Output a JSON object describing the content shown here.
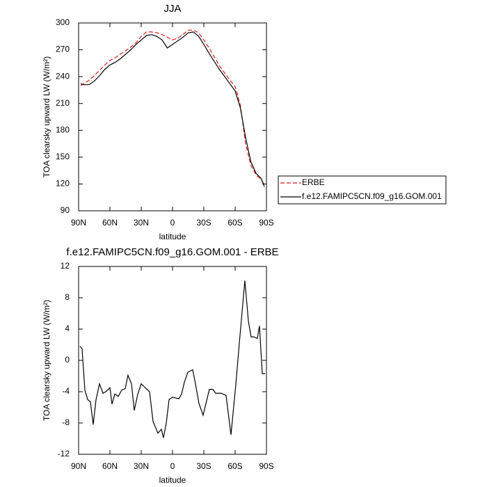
{
  "chart_data": [
    {
      "type": "line",
      "title": "JJA",
      "x_label": "latitude",
      "y_label": "TOA clearsky upward LW (W/m²)",
      "x": [
        88,
        85,
        80,
        75,
        70,
        65,
        60,
        55,
        50,
        45,
        40,
        35,
        30,
        25,
        20,
        15,
        10,
        5,
        0,
        -5,
        -10,
        -15,
        -20,
        -25,
        -30,
        -35,
        -40,
        -45,
        -50,
        -55,
        -60,
        -65,
        -70,
        -75,
        -80,
        -85,
        -88
      ],
      "series": [
        {
          "name": "ERBE",
          "color": "#e41a1c",
          "dash": true,
          "values": [
            230,
            232,
            236,
            241,
            247,
            253,
            258,
            261,
            265,
            269,
            273,
            278,
            285,
            290,
            290,
            289,
            287,
            284,
            281,
            283,
            287,
            292,
            292,
            289,
            281,
            272,
            262,
            252,
            244,
            236,
            229,
            208,
            165,
            141,
            130,
            125,
            119
          ]
        },
        {
          "name": "f.e12.FAMIPC5CN.f09_g16.GOM.001",
          "color": "#000000",
          "dash": false,
          "values": [
            232,
            231,
            231,
            235,
            241,
            248,
            253,
            256,
            260,
            265,
            270,
            276,
            281,
            286,
            287,
            285,
            281,
            272,
            276,
            280,
            284,
            289,
            290,
            285,
            276,
            266,
            257,
            248,
            240,
            232,
            224,
            205,
            172,
            145,
            132,
            126,
            117
          ]
        }
      ],
      "xlim": [
        90,
        -90
      ],
      "xticks": [
        {
          "value": 90,
          "label": "90N"
        },
        {
          "value": 60,
          "label": "60N"
        },
        {
          "value": 30,
          "label": "30N"
        },
        0,
        {
          "value": -30,
          "label": "30S"
        },
        {
          "value": -60,
          "label": "60S"
        },
        {
          "value": -90,
          "label": "90S"
        }
      ],
      "ylim": [
        90,
        300
      ],
      "yticks": [
        90,
        120,
        150,
        180,
        210,
        240,
        270,
        300
      ],
      "legend": "right"
    },
    {
      "type": "line",
      "title": "f.e12.FAMIPC5CN.f09_g16.GOM.001 - ERBE",
      "x_label": "latitude",
      "y_label": "TOA clearsky upward LW (W/m²)",
      "x": [
        88.7,
        86.7,
        84,
        81.3,
        78.7,
        76,
        73.3,
        70,
        66.7,
        64,
        60,
        58,
        55.3,
        52,
        48.7,
        45.3,
        42.7,
        39.3,
        36.7,
        33.3,
        30,
        25.3,
        22,
        18.7,
        14,
        10.7,
        8.7,
        6,
        3.3,
        0,
        -6,
        -8.7,
        -11.3,
        -14.7,
        -19.3,
        -22,
        -25.3,
        -29.3,
        -35.3,
        -38.7,
        -41.3,
        -46.7,
        -51.3,
        -56,
        -60.7,
        -64,
        -69.3,
        -72.7,
        -75.3,
        -78,
        -81.3,
        -83.3,
        -86,
        -88.7
      ],
      "values": [
        1.8,
        1.5,
        -3.8,
        -5,
        -5.3,
        -8.2,
        -5,
        -3,
        -4.2,
        -4,
        -3.5,
        -5.6,
        -4.3,
        -4.6,
        -3.8,
        -3.6,
        -1.9,
        -3,
        -6.4,
        -4.3,
        -3,
        -3.6,
        -4,
        -7.8,
        -9.3,
        -8.8,
        -9.9,
        -8,
        -5,
        -4.7,
        -4.9,
        -4.3,
        -2.8,
        -1.5,
        -1.2,
        -3,
        -5.5,
        -7,
        -3.7,
        -3.7,
        -4.2,
        -4.2,
        -4.5,
        -9.5,
        -3,
        2.2,
        10.2,
        5,
        3,
        3,
        2.8,
        4.4,
        -1.7,
        -1.7
      ],
      "color": "#000000",
      "xlim": [
        90,
        -90
      ],
      "xticks": [
        {
          "value": 90,
          "label": "90N"
        },
        {
          "value": 60,
          "label": "60N"
        },
        {
          "value": 30,
          "label": "30N"
        },
        0,
        {
          "value": -30,
          "label": "30S"
        },
        {
          "value": -60,
          "label": "60S"
        },
        {
          "value": -90,
          "label": "90S"
        }
      ],
      "ylim": [
        -12,
        12
      ],
      "yticks": [
        -12,
        -8,
        -4,
        0,
        4,
        8,
        12
      ]
    }
  ]
}
